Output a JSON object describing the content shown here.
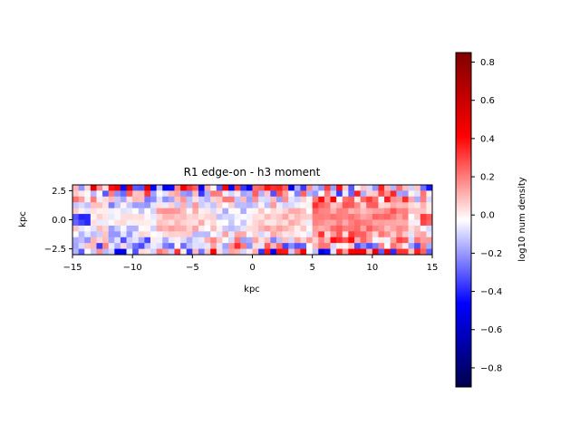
{
  "chart_data": {
    "type": "heatmap",
    "title": "R1 edge-on - h3 moment",
    "xlabel": "kpc",
    "ylabel": "kpc",
    "xlim": [
      -15,
      15
    ],
    "ylim": [
      -3,
      3
    ],
    "x_ticks": [
      -15,
      -10,
      -5,
      0,
      5,
      10,
      15
    ],
    "x_tick_labels": [
      "−15",
      "−10",
      "−5",
      "0",
      "5",
      "10",
      "15"
    ],
    "y_ticks": [
      -2.5,
      0.0,
      2.5
    ],
    "y_tick_labels": [
      "−2.5",
      "0.0",
      "2.5"
    ],
    "grid": false,
    "grid_cols": 60,
    "grid_rows": 12,
    "colormap": "seismic",
    "colorbar": {
      "label": "log10 num density",
      "range": [
        -0.9,
        0.85
      ],
      "ticks": [
        -0.8,
        -0.6,
        -0.4,
        -0.2,
        0.0,
        0.2,
        0.4,
        0.6,
        0.8
      ],
      "tick_labels": [
        "−0.8",
        "−0.6",
        "−0.4",
        "−0.2",
        "0.0",
        "0.2",
        "0.4",
        "0.6",
        "0.8"
      ]
    },
    "colors": {
      "low": "#00004c",
      "mid_low": "#0000ff",
      "mid": "#ffffff",
      "mid_high": "#ff0000",
      "high": "#800000"
    }
  }
}
